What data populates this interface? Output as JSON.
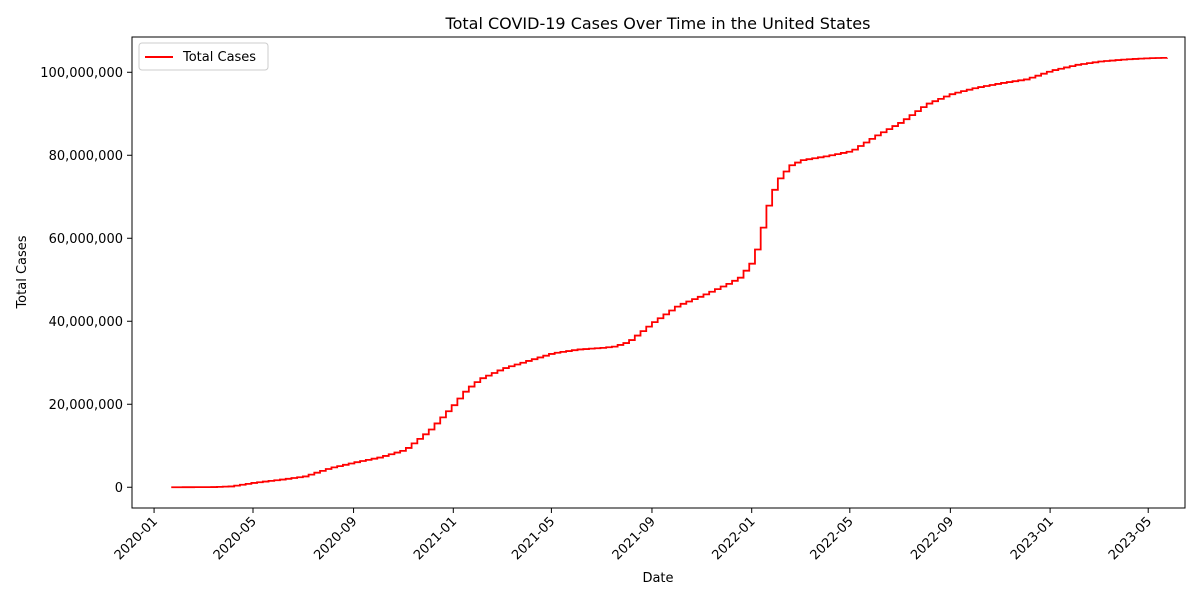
{
  "chart_data": {
    "type": "line",
    "title": "Total COVID-19 Cases Over Time in the United States",
    "xlabel": "Date",
    "ylabel": "Total Cases",
    "x_ticks": [
      "2020-01",
      "2020-05",
      "2020-09",
      "2021-01",
      "2021-05",
      "2021-09",
      "2022-01",
      "2022-05",
      "2022-09",
      "2023-01",
      "2023-05"
    ],
    "y_ticks": [
      0,
      20000000,
      40000000,
      60000000,
      80000000,
      100000000
    ],
    "y_tick_labels": [
      "0",
      "20,000,000",
      "40,000,000",
      "60,000,000",
      "80,000,000",
      "100,000,000"
    ],
    "xlim": [
      "2019-12-05",
      "2023-06-15"
    ],
    "ylim": [
      -5000000,
      108500000
    ],
    "grid": false,
    "legend_position": "top-left",
    "step_interval_days": 7,
    "series": [
      {
        "name": "Total Cases",
        "color": "#ff0000",
        "x": [
          "2020-01-22",
          "2020-03-01",
          "2020-03-15",
          "2020-04-01",
          "2020-04-15",
          "2020-05-01",
          "2020-06-01",
          "2020-07-01",
          "2020-08-01",
          "2020-09-01",
          "2020-10-01",
          "2020-11-01",
          "2020-12-01",
          "2021-01-01",
          "2021-01-15",
          "2021-02-01",
          "2021-03-01",
          "2021-04-01",
          "2021-05-01",
          "2021-06-01",
          "2021-07-01",
          "2021-07-15",
          "2021-08-01",
          "2021-09-01",
          "2021-10-01",
          "2021-11-01",
          "2021-12-01",
          "2021-12-15",
          "2022-01-01",
          "2022-01-08",
          "2022-01-15",
          "2022-01-22",
          "2022-02-01",
          "2022-02-15",
          "2022-03-01",
          "2022-04-01",
          "2022-05-01",
          "2022-06-01",
          "2022-07-01",
          "2022-08-01",
          "2022-09-01",
          "2022-10-01",
          "2022-11-01",
          "2022-12-01",
          "2023-01-01",
          "2023-02-01",
          "2023-03-01",
          "2023-04-01",
          "2023-05-01",
          "2023-05-24"
        ],
        "y": [
          0,
          30000,
          60000,
          200000,
          600000,
          1100000,
          1800000,
          2600000,
          4600000,
          6000000,
          7200000,
          9000000,
          13700000,
          20200000,
          23500000,
          26100000,
          28600000,
          30500000,
          32300000,
          33200000,
          33600000,
          33900000,
          35000000,
          39800000,
          43800000,
          46300000,
          49000000,
          50500000,
          54600000,
          59300000,
          65000000,
          70000000,
          74200000,
          77500000,
          78800000,
          79800000,
          81000000,
          84800000,
          88000000,
          92300000,
          94800000,
          96300000,
          97400000,
          98300000,
          100400000,
          101800000,
          102600000,
          103100000,
          103400000,
          103500000
        ]
      }
    ]
  }
}
